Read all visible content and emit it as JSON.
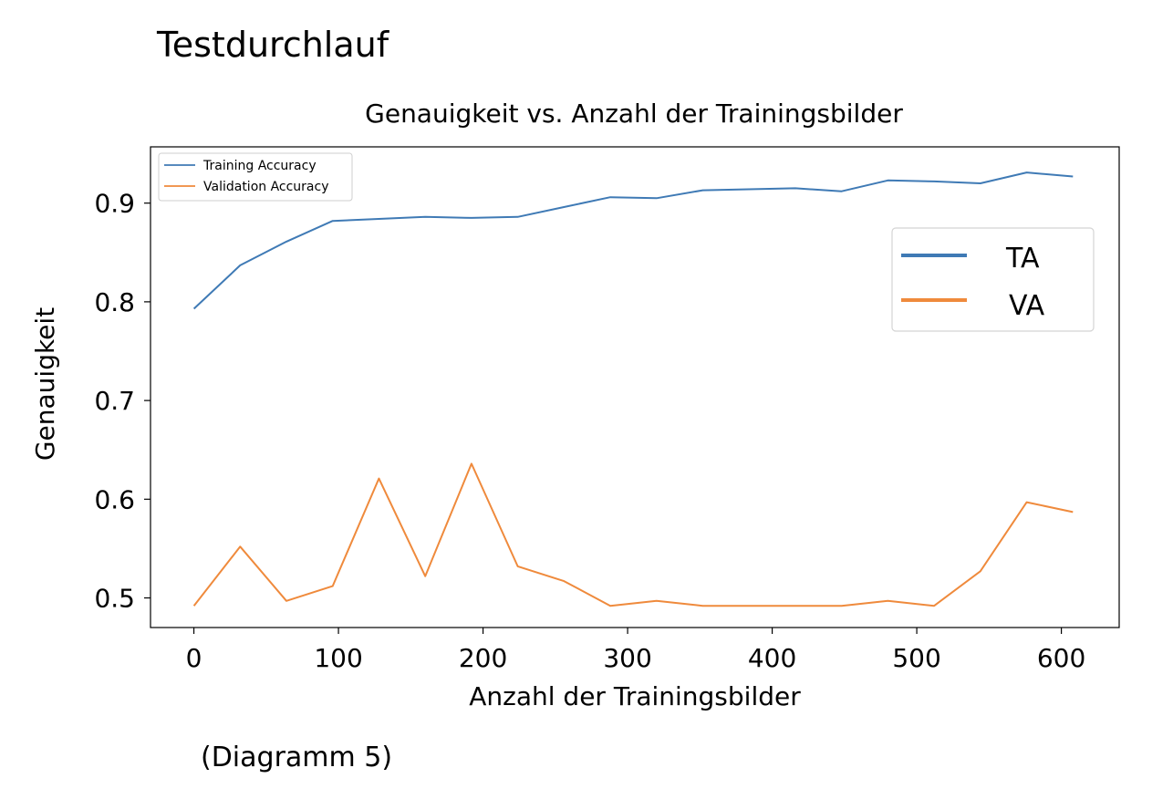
{
  "heading": "Testdurchlauf",
  "caption": "(Diagramm 5)",
  "colors": {
    "training": "#3f7ab5",
    "validation": "#ef8a3c"
  },
  "chart_data": {
    "type": "line",
    "title": "Genauigkeit vs. Anzahl der Trainingsbilder",
    "xlabel": "Anzahl der Trainingsbilder",
    "ylabel": "Genauigkeit",
    "xlim": [
      -30,
      640
    ],
    "ylim": [
      0.47,
      0.957
    ],
    "xticks": [
      0,
      100,
      200,
      300,
      400,
      500,
      600
    ],
    "yticks": [
      0.5,
      0.6,
      0.7,
      0.8,
      0.9
    ],
    "ytick_labels": [
      "0.5",
      "0.6",
      "0.7",
      "0.8",
      "0.9"
    ],
    "grid": false,
    "x": [
      0,
      32,
      64,
      96,
      128,
      160,
      192,
      224,
      256,
      288,
      320,
      352,
      384,
      416,
      448,
      480,
      512,
      544,
      576,
      608
    ],
    "series": [
      {
        "name": "Training Accuracy",
        "short_name": "TA",
        "color": "#3f7ab5",
        "values": [
          0.793,
          0.837,
          0.861,
          0.882,
          0.884,
          0.886,
          0.885,
          0.886,
          0.896,
          0.906,
          0.905,
          0.913,
          0.914,
          0.915,
          0.912,
          0.923,
          0.922,
          0.92,
          0.931,
          0.927
        ]
      },
      {
        "name": "Validation Accuracy",
        "short_name": "VA",
        "color": "#ef8a3c",
        "values": [
          0.492,
          0.552,
          0.497,
          0.512,
          0.621,
          0.522,
          0.636,
          0.532,
          0.517,
          0.492,
          0.497,
          0.492,
          0.492,
          0.492,
          0.492,
          0.497,
          0.492,
          0.527,
          0.597,
          0.587
        ]
      }
    ],
    "legend_small": {
      "placement": "top-left",
      "entries": [
        "Training Accuracy",
        "Validation Accuracy"
      ]
    },
    "legend_big": {
      "placement": "upper-right",
      "entries": [
        "TA",
        "VA"
      ]
    }
  }
}
